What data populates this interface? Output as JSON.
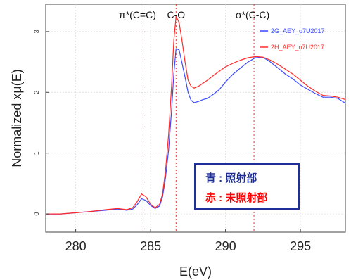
{
  "chart_data": {
    "type": "line",
    "xlabel": "E(eV)",
    "ylabel": "Normalized xμ(E)",
    "xlim": [
      278,
      298
    ],
    "ylim": [
      -0.3,
      3.45
    ],
    "x_ticks": [
      280,
      285,
      290,
      295
    ],
    "y_ticks": [
      0,
      1,
      2,
      3
    ],
    "annotations": [
      {
        "label": "π*(C=C)",
        "x": 284.5
      },
      {
        "label": "C-O",
        "x": 286.7
      },
      {
        "label": "σ*(C-C)",
        "x": 291.9
      }
    ],
    "series": [
      {
        "name": "2G_AEY_o7U2017",
        "color": "#3b4bff",
        "x": [
          278,
          279,
          280,
          281,
          282,
          282.8,
          283.4,
          283.8,
          284.1,
          284.4,
          284.7,
          285.0,
          285.3,
          285.6,
          285.8,
          286.0,
          286.2,
          286.4,
          286.55,
          286.7,
          286.9,
          287.1,
          287.3,
          287.5,
          287.7,
          287.9,
          288.2,
          288.5,
          288.8,
          289.2,
          289.6,
          290.0,
          290.5,
          291.0,
          291.5,
          292.0,
          292.5,
          293.0,
          293.5,
          294.0,
          294.5,
          295.0,
          295.5,
          296.0,
          296.5,
          297.0,
          297.5,
          298.0
        ],
        "y": [
          0.0,
          0.0,
          0.02,
          0.04,
          0.06,
          0.08,
          0.06,
          0.08,
          0.15,
          0.25,
          0.22,
          0.14,
          0.09,
          0.13,
          0.28,
          0.6,
          1.05,
          1.7,
          2.3,
          2.72,
          2.7,
          2.48,
          2.25,
          2.0,
          1.87,
          1.83,
          1.85,
          1.88,
          1.9,
          1.97,
          2.05,
          2.17,
          2.3,
          2.4,
          2.5,
          2.57,
          2.58,
          2.5,
          2.4,
          2.3,
          2.22,
          2.12,
          2.05,
          1.98,
          1.92,
          1.92,
          1.9,
          1.82
        ]
      },
      {
        "name": "2H_AEY_o7U2017",
        "color": "#ff2a2a",
        "x": [
          278,
          279,
          280,
          281,
          282,
          282.8,
          283.4,
          283.8,
          284.1,
          284.4,
          284.7,
          285.0,
          285.3,
          285.6,
          285.8,
          286.0,
          286.2,
          286.4,
          286.55,
          286.7,
          286.9,
          287.1,
          287.3,
          287.5,
          287.7,
          287.9,
          288.2,
          288.5,
          288.8,
          289.2,
          289.6,
          290.0,
          290.5,
          291.0,
          291.5,
          292.0,
          292.5,
          293.0,
          293.5,
          294.0,
          294.5,
          295.0,
          295.5,
          296.0,
          296.5,
          297.0,
          297.5,
          298.0
        ],
        "y": [
          0.0,
          0.0,
          0.02,
          0.04,
          0.07,
          0.09,
          0.07,
          0.1,
          0.2,
          0.33,
          0.28,
          0.16,
          0.1,
          0.16,
          0.33,
          0.72,
          1.3,
          2.1,
          2.85,
          3.25,
          3.15,
          2.85,
          2.5,
          2.2,
          2.1,
          2.07,
          2.1,
          2.15,
          2.2,
          2.28,
          2.35,
          2.42,
          2.48,
          2.53,
          2.57,
          2.59,
          2.58,
          2.53,
          2.46,
          2.38,
          2.3,
          2.2,
          2.1,
          2.02,
          1.95,
          1.94,
          1.92,
          1.88
        ]
      }
    ],
    "box_legend": [
      {
        "label": "青 : 照射部",
        "color": "#1f2f9a"
      },
      {
        "label": "赤 : 未照射部",
        "color": "#ff0000"
      }
    ]
  }
}
